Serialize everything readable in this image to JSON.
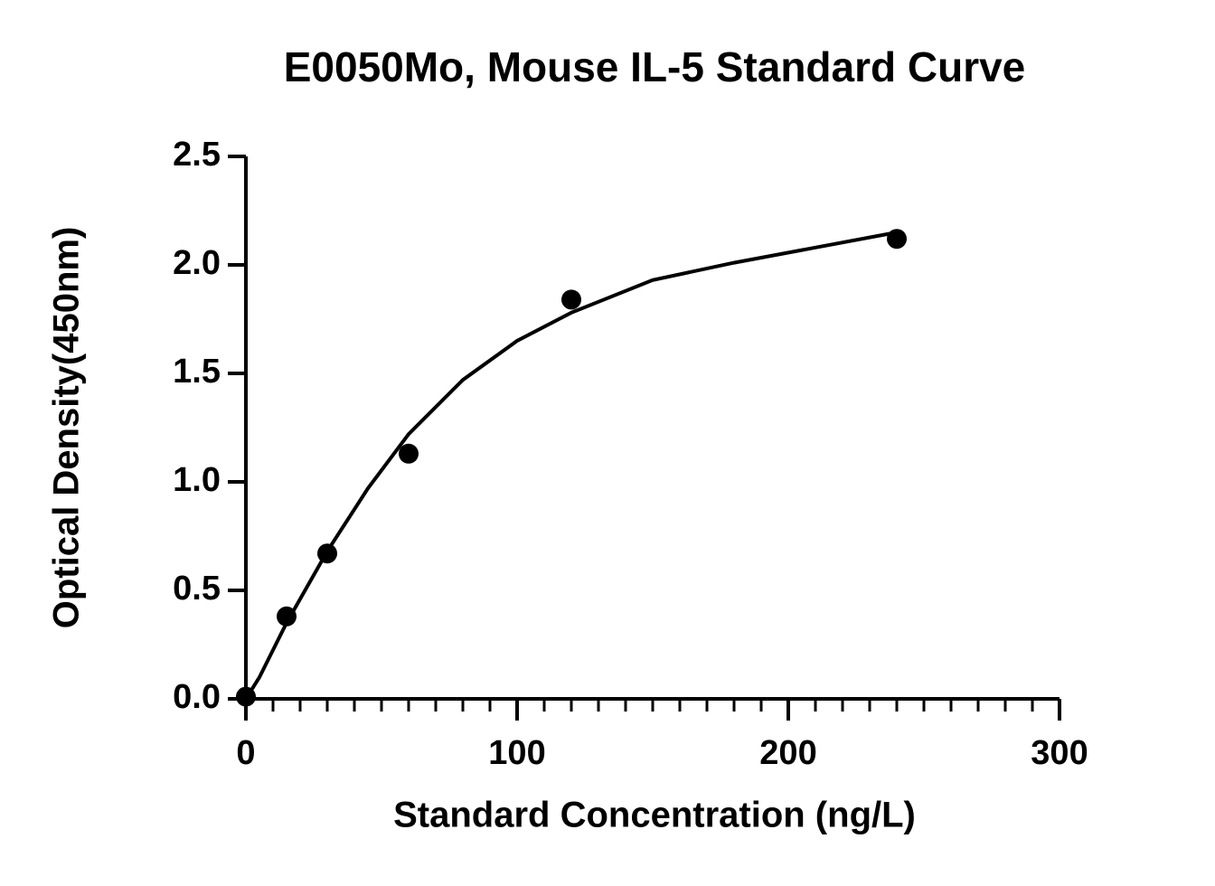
{
  "chart_data": {
    "type": "scatter",
    "title": "E0050Mo, Mouse IL-5 Standard Curve",
    "x_label": "Standard Concentration (ng/L)",
    "y_label": "Optical Density(450nm)",
    "x": [
      0,
      15,
      30,
      60,
      120,
      240
    ],
    "values": [
      0.01,
      0.38,
      0.67,
      1.13,
      1.84,
      2.12
    ],
    "color": "#000000",
    "fit_curve": {
      "x": [
        0,
        5,
        15,
        30,
        45,
        60,
        80,
        100,
        120,
        150,
        180,
        210,
        240
      ],
      "y": [
        0.0,
        0.1,
        0.35,
        0.68,
        0.97,
        1.22,
        1.47,
        1.65,
        1.78,
        1.93,
        2.01,
        2.08,
        2.15
      ]
    },
    "xlim": [
      0,
      300
    ],
    "ylim": [
      0,
      2.5
    ],
    "xticks": [
      0,
      100,
      200,
      300
    ],
    "xminorticks": [
      10,
      20,
      30,
      40,
      50,
      60,
      70,
      80,
      90,
      110,
      120,
      130,
      140,
      150,
      160,
      170,
      180,
      190,
      210,
      220,
      230,
      240,
      250,
      260,
      270,
      280,
      290
    ],
    "yticks": [
      {
        "value": 0,
        "label": "0.0"
      },
      0.5,
      {
        "value": 1,
        "label": "1.0"
      },
      1.5,
      {
        "value": 2,
        "label": "2.0"
      },
      2.5
    ]
  }
}
